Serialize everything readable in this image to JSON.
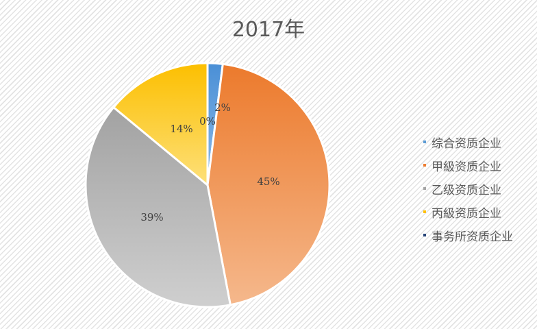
{
  "chart_data": {
    "type": "pie",
    "title": "2017年",
    "categories": [
      "综合资质企业",
      "甲級资质企业",
      "乙级资质企业",
      "丙級资质企业",
      "事务所资质企业"
    ],
    "values": [
      2,
      45,
      39,
      14,
      0
    ],
    "data_labels": [
      "2%",
      "45%",
      "39%",
      "14%",
      "0%"
    ],
    "colors": [
      "#5b9bd5",
      "#ed7d31",
      "#a5a5a5",
      "#ffc000",
      "#264478"
    ],
    "legend_position": "right",
    "start_angle": "top, clockwise"
  }
}
